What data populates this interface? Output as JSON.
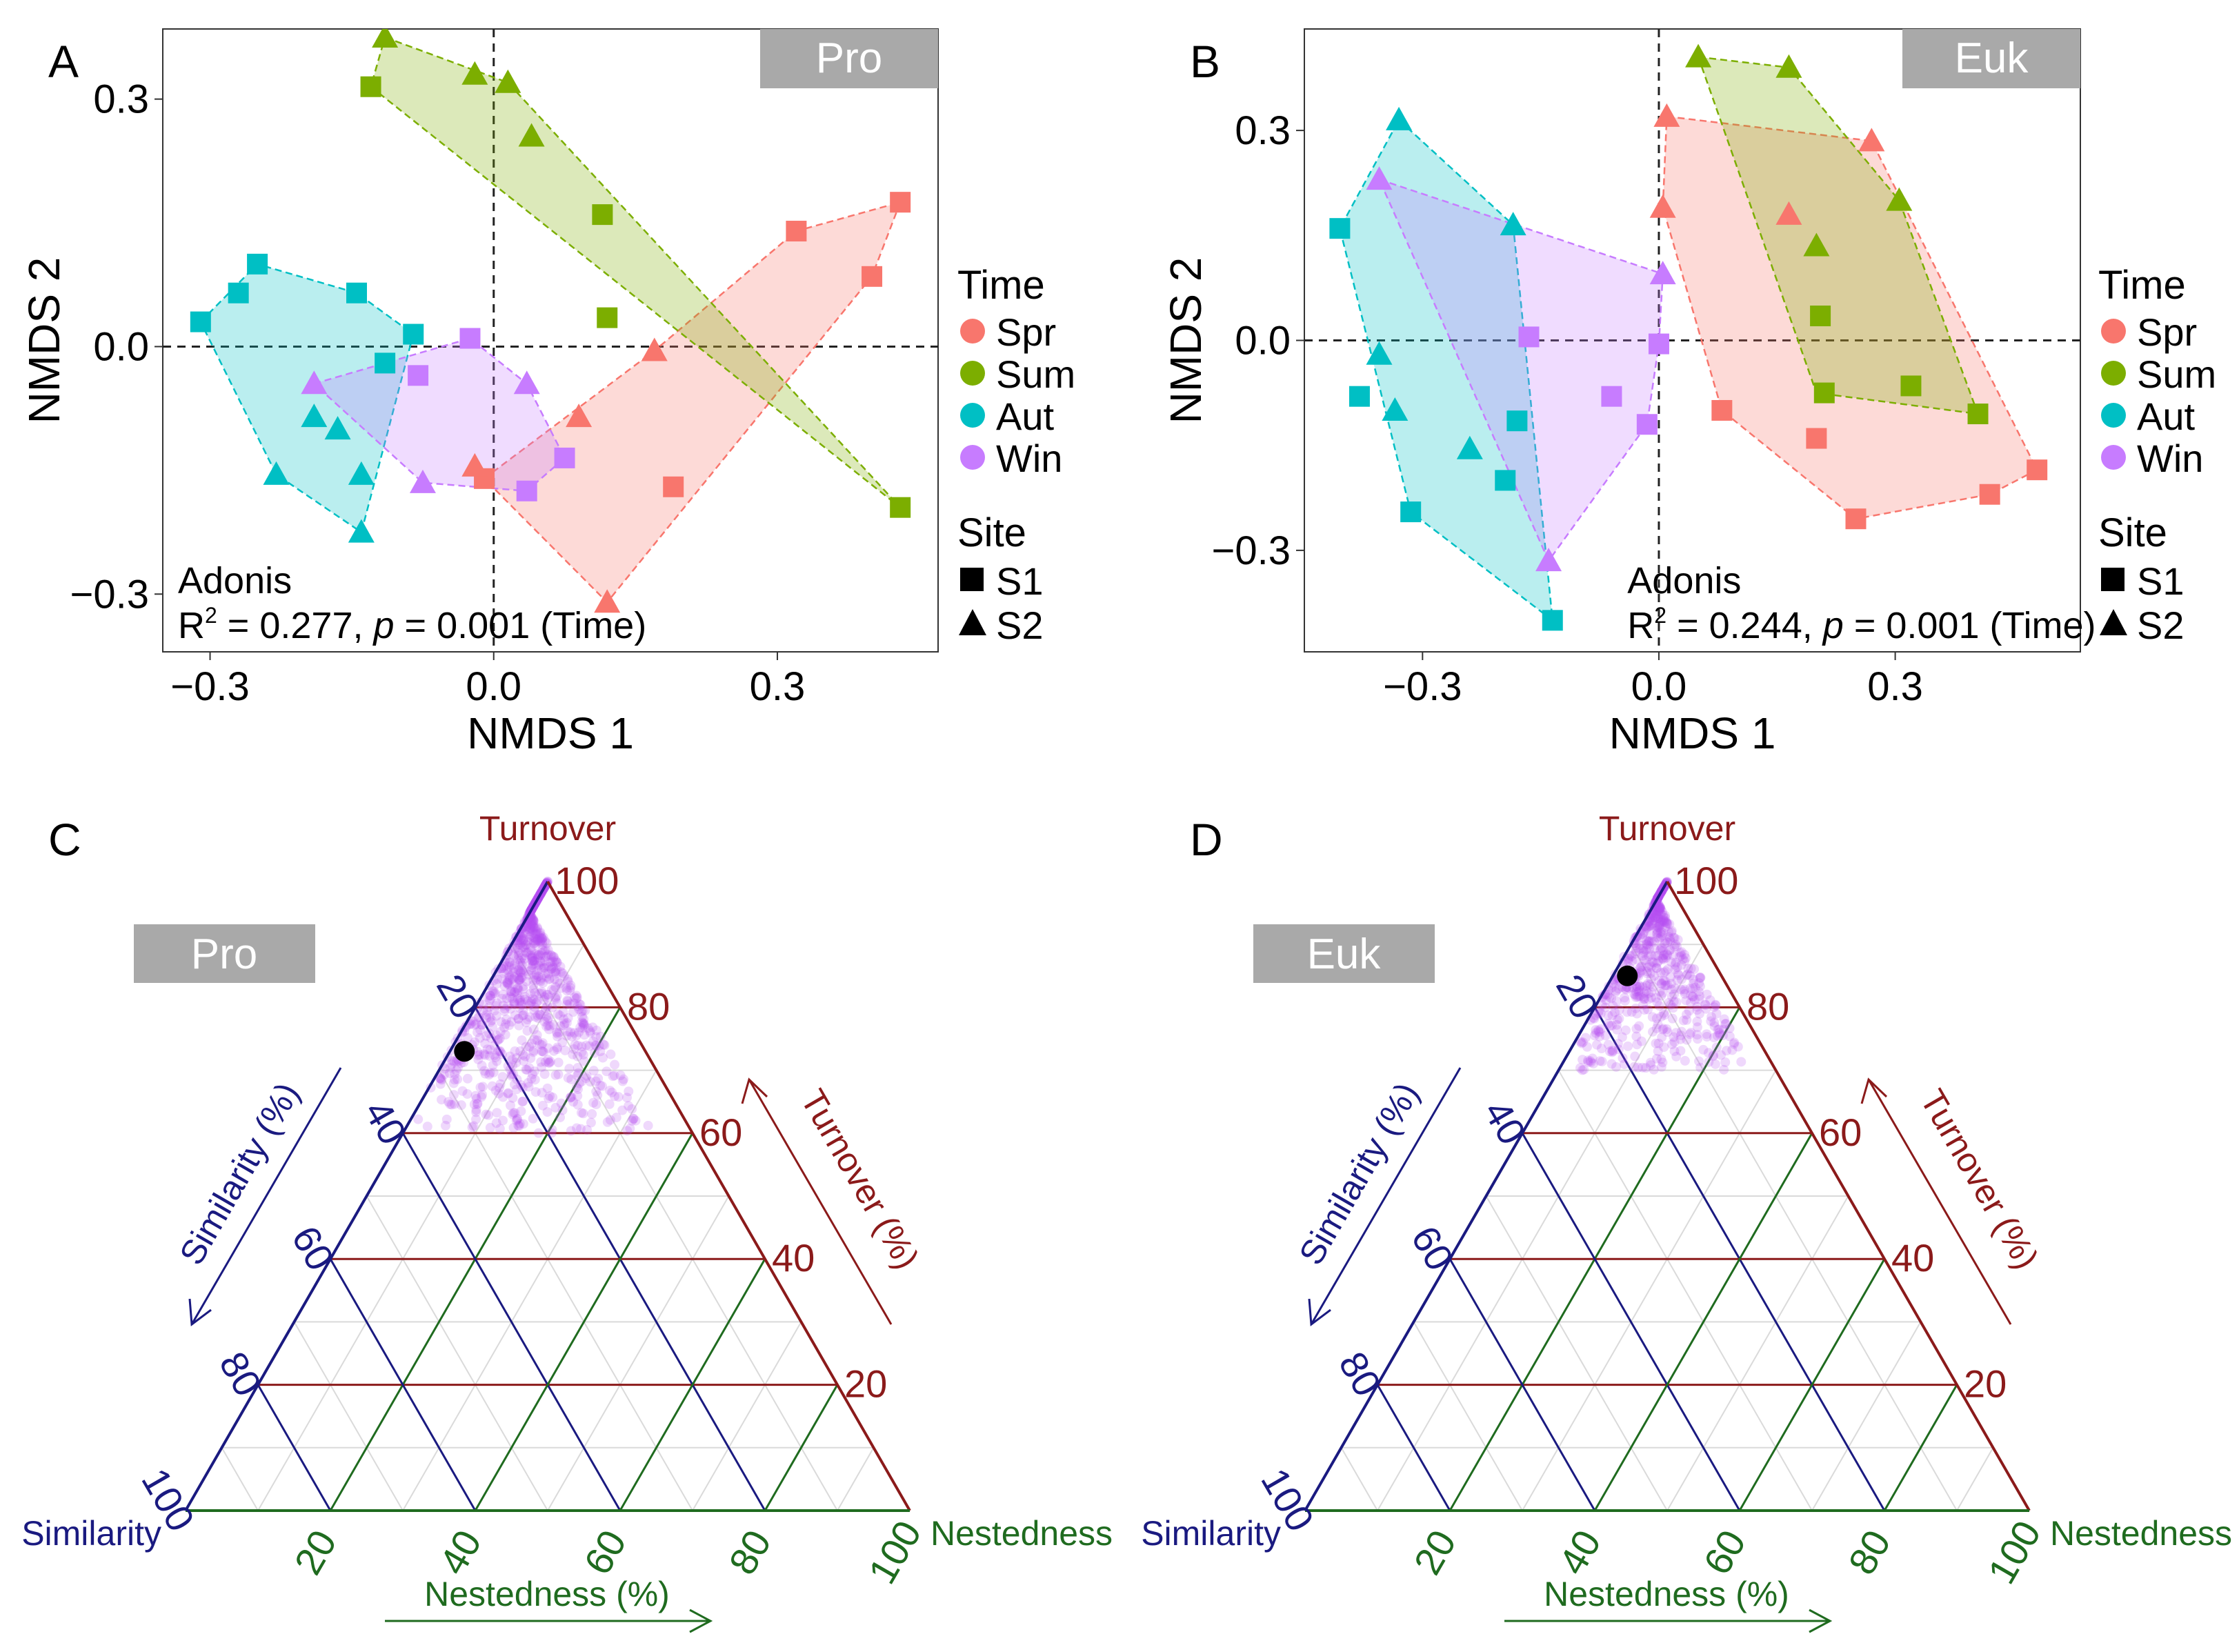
{
  "colors": {
    "spr": "#F8766D",
    "sum": "#7CAE00",
    "aut": "#00BFC4",
    "win": "#C77CFF",
    "turnover": "#8B1A1A",
    "similarity": "#1A1A80",
    "nestedness": "#1F6B1F",
    "badge": "#A9A9A9",
    "ternary_points": "#B44CF0"
  },
  "legend": {
    "time_title": "Time",
    "time_items": [
      {
        "key": "spr",
        "label": "Spr"
      },
      {
        "key": "sum",
        "label": "Sum"
      },
      {
        "key": "aut",
        "label": "Aut"
      },
      {
        "key": "win",
        "label": "Win"
      }
    ],
    "site_title": "Site",
    "site_items": [
      {
        "shape": "square",
        "label": "S1"
      },
      {
        "shape": "triangle",
        "label": "S2"
      }
    ]
  },
  "chart_data": [
    {
      "type": "scatter",
      "panel": "A",
      "badge": "Pro",
      "xlabel": "NMDS 1",
      "ylabel": "NMDS 2",
      "xlim": [
        -0.35,
        0.47
      ],
      "ylim": [
        -0.37,
        0.385
      ],
      "xticks": [
        -0.3,
        0.0,
        0.3
      ],
      "xticklabels": [
        "−0.3",
        "0.0",
        "0.3"
      ],
      "yticks": [
        -0.3,
        0.0,
        0.3
      ],
      "yticklabels": [
        "−0.3",
        "0.0",
        "0.3"
      ],
      "annotation_title": "Adonis",
      "annotation_r2": "0.277",
      "annotation_p": "0.001",
      "annotation_suffix": "(Time)",
      "series": [
        {
          "name": "Spr",
          "hull": [
            [
              0.43,
              0.175
            ],
            [
              0.4,
              0.085
            ],
            [
              0.12,
              -0.31
            ],
            [
              -0.01,
              -0.16
            ],
            [
              0.17,
              -0.005
            ],
            [
              0.32,
              0.14
            ]
          ],
          "points": [
            [
              0.43,
              0.175,
              "s"
            ],
            [
              0.32,
              0.14,
              "s"
            ],
            [
              0.4,
              0.085,
              "s"
            ],
            [
              0.17,
              -0.005,
              "t"
            ],
            [
              0.09,
              -0.085,
              "t"
            ],
            [
              0.19,
              -0.17,
              "s"
            ],
            [
              0.12,
              -0.31,
              "t"
            ],
            [
              -0.01,
              -0.16,
              "s"
            ],
            [
              -0.02,
              -0.145,
              "t"
            ]
          ]
        },
        {
          "name": "Sum",
          "hull": [
            [
              -0.115,
              0.375
            ],
            [
              0.015,
              0.32
            ],
            [
              0.43,
              -0.195
            ],
            [
              -0.13,
              0.315
            ]
          ],
          "points": [
            [
              -0.115,
              0.375,
              "t"
            ],
            [
              -0.02,
              0.33,
              "t"
            ],
            [
              0.015,
              0.32,
              "t"
            ],
            [
              0.04,
              0.255,
              "t"
            ],
            [
              -0.13,
              0.315,
              "s"
            ],
            [
              0.115,
              0.16,
              "s"
            ],
            [
              0.12,
              0.035,
              "s"
            ],
            [
              0.43,
              -0.195,
              "s"
            ]
          ]
        },
        {
          "name": "Aut",
          "hull": [
            [
              -0.31,
              0.03
            ],
            [
              -0.25,
              0.1
            ],
            [
              -0.145,
              0.065
            ],
            [
              -0.085,
              0.015
            ],
            [
              -0.14,
              -0.225
            ],
            [
              -0.23,
              -0.155
            ]
          ],
          "points": [
            [
              -0.25,
              0.1,
              "s"
            ],
            [
              -0.27,
              0.065,
              "s"
            ],
            [
              -0.145,
              0.065,
              "s"
            ],
            [
              -0.31,
              0.03,
              "s"
            ],
            [
              -0.085,
              0.015,
              "s"
            ],
            [
              -0.115,
              -0.02,
              "s"
            ],
            [
              -0.19,
              -0.085,
              "t"
            ],
            [
              -0.165,
              -0.1,
              "t"
            ],
            [
              -0.23,
              -0.155,
              "t"
            ],
            [
              -0.14,
              -0.155,
              "t"
            ],
            [
              -0.14,
              -0.225,
              "t"
            ]
          ]
        },
        {
          "name": "Win",
          "hull": [
            [
              -0.19,
              -0.045
            ],
            [
              -0.025,
              0.01
            ],
            [
              0.035,
              -0.045
            ],
            [
              0.075,
              -0.135
            ],
            [
              0.035,
              -0.175
            ],
            [
              -0.075,
              -0.165
            ]
          ],
          "points": [
            [
              -0.025,
              0.01,
              "s"
            ],
            [
              -0.08,
              -0.035,
              "s"
            ],
            [
              -0.19,
              -0.045,
              "t"
            ],
            [
              0.035,
              -0.045,
              "t"
            ],
            [
              0.075,
              -0.135,
              "s"
            ],
            [
              -0.075,
              -0.165,
              "t"
            ],
            [
              0.035,
              -0.175,
              "s"
            ]
          ]
        }
      ]
    },
    {
      "type": "scatter",
      "panel": "B",
      "badge": "Euk",
      "xlabel": "NMDS 1",
      "ylabel": "NMDS 2",
      "xlim": [
        -0.45,
        0.535
      ],
      "ylim": [
        -0.445,
        0.445
      ],
      "xticks": [
        -0.3,
        0.0,
        0.3
      ],
      "xticklabels": [
        "−0.3",
        "0.0",
        "0.3"
      ],
      "yticks": [
        -0.3,
        0.0,
        0.3
      ],
      "yticklabels": [
        "−0.3",
        "0.0",
        "0.3"
      ],
      "annotation_title": "Adonis",
      "annotation_r2": "0.244",
      "annotation_p": "0.001",
      "annotation_suffix": "(Time)",
      "series": [
        {
          "name": "Spr",
          "hull": [
            [
              0.01,
              0.32
            ],
            [
              0.27,
              0.285
            ],
            [
              0.48,
              -0.185
            ],
            [
              0.42,
              -0.22
            ],
            [
              0.25,
              -0.255
            ],
            [
              0.08,
              -0.1
            ],
            [
              0.005,
              0.19
            ]
          ],
          "points": [
            [
              0.01,
              0.32,
              "t"
            ],
            [
              0.27,
              0.285,
              "t"
            ],
            [
              0.005,
              0.19,
              "t"
            ],
            [
              0.165,
              0.18,
              "t"
            ],
            [
              0.08,
              -0.1,
              "s"
            ],
            [
              0.2,
              -0.14,
              "s"
            ],
            [
              0.48,
              -0.185,
              "s"
            ],
            [
              0.42,
              -0.22,
              "s"
            ],
            [
              0.25,
              -0.255,
              "s"
            ]
          ]
        },
        {
          "name": "Sum",
          "hull": [
            [
              0.05,
              0.405
            ],
            [
              0.165,
              0.39
            ],
            [
              0.305,
              0.2
            ],
            [
              0.405,
              -0.105
            ],
            [
              0.2,
              -0.075
            ]
          ],
          "points": [
            [
              0.05,
              0.405,
              "t"
            ],
            [
              0.165,
              0.39,
              "t"
            ],
            [
              0.305,
              0.2,
              "t"
            ],
            [
              0.2,
              0.135,
              "t"
            ],
            [
              0.205,
              0.035,
              "s"
            ],
            [
              0.21,
              -0.075,
              "s"
            ],
            [
              0.32,
              -0.065,
              "s"
            ],
            [
              0.405,
              -0.105,
              "s"
            ]
          ]
        },
        {
          "name": "Aut",
          "hull": [
            [
              -0.33,
              0.315
            ],
            [
              -0.185,
              0.165
            ],
            [
              -0.135,
              -0.4
            ],
            [
              -0.315,
              -0.245
            ],
            [
              -0.405,
              0.16
            ]
          ],
          "points": [
            [
              -0.33,
              0.315,
              "t"
            ],
            [
              -0.405,
              0.16,
              "s"
            ],
            [
              -0.185,
              0.165,
              "t"
            ],
            [
              -0.355,
              -0.02,
              "t"
            ],
            [
              -0.38,
              -0.08,
              "s"
            ],
            [
              -0.335,
              -0.1,
              "t"
            ],
            [
              -0.24,
              -0.155,
              "t"
            ],
            [
              -0.18,
              -0.115,
              "s"
            ],
            [
              -0.195,
              -0.2,
              "s"
            ],
            [
              -0.315,
              -0.245,
              "s"
            ],
            [
              -0.135,
              -0.4,
              "s"
            ]
          ]
        },
        {
          "name": "Win",
          "hull": [
            [
              -0.355,
              0.23
            ],
            [
              0.005,
              0.095
            ],
            [
              0.0,
              -0.005
            ],
            [
              -0.015,
              -0.12
            ],
            [
              -0.14,
              -0.315
            ]
          ],
          "points": [
            [
              -0.355,
              0.23,
              "t"
            ],
            [
              0.005,
              0.095,
              "t"
            ],
            [
              -0.165,
              0.005,
              "s"
            ],
            [
              0.0,
              -0.005,
              "s"
            ],
            [
              -0.06,
              -0.08,
              "s"
            ],
            [
              -0.015,
              -0.12,
              "s"
            ],
            [
              -0.14,
              -0.315,
              "t"
            ]
          ]
        }
      ]
    },
    {
      "type": "scatter",
      "subtype": "ternary",
      "panel": "C",
      "badge": "Pro",
      "vertex_labels": {
        "top": "Turnover",
        "left": "Similarity",
        "right": "Nestedness"
      },
      "axis_titles": {
        "turnover": "Turnover (%)",
        "similarity": "Similarity (%)",
        "nestedness": "Nestedness (%)"
      },
      "tick_labels": [
        "20",
        "40",
        "60",
        "80",
        "100"
      ],
      "cloud": {
        "turnover_range": [
          60,
          100
        ],
        "similarity_range": [
          5,
          37
        ],
        "count": 900
      },
      "mean_point": {
        "turnover": 73,
        "similarity": 25,
        "nestedness": 2
      }
    },
    {
      "type": "scatter",
      "subtype": "ternary",
      "panel": "D",
      "badge": "Euk",
      "vertex_labels": {
        "top": "Turnover",
        "left": "Similarity",
        "right": "Nestedness"
      },
      "axis_titles": {
        "turnover": "Turnover (%)",
        "similarity": "Similarity (%)",
        "nestedness": "Nestedness (%)"
      },
      "tick_labels": [
        "20",
        "40",
        "60",
        "80",
        "100"
      ],
      "cloud": {
        "turnover_range": [
          70,
          100
        ],
        "similarity_range": [
          3,
          27
        ],
        "count": 600
      },
      "mean_point": {
        "turnover": 85,
        "similarity": 13,
        "nestedness": 2
      }
    }
  ]
}
